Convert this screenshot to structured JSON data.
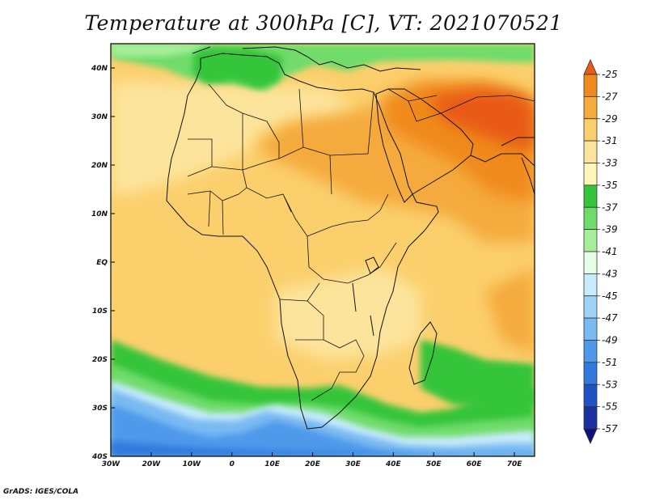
{
  "title": "Temperature at 300hPa [C], VT: 2021070521",
  "credit": "GrADS: IGES/COLA",
  "map": {
    "lon_range": [
      -30,
      75
    ],
    "lat_range": [
      -40,
      45
    ],
    "lon_ticks": [
      {
        "value": -30,
        "label": "30W"
      },
      {
        "value": -20,
        "label": "20W"
      },
      {
        "value": -10,
        "label": "10W"
      },
      {
        "value": 0,
        "label": "0"
      },
      {
        "value": 10,
        "label": "10E"
      },
      {
        "value": 20,
        "label": "20E"
      },
      {
        "value": 30,
        "label": "30E"
      },
      {
        "value": 40,
        "label": "40E"
      },
      {
        "value": 50,
        "label": "50E"
      },
      {
        "value": 60,
        "label": "60E"
      },
      {
        "value": 70,
        "label": "70E"
      }
    ],
    "lat_ticks": [
      {
        "value": 40,
        "label": "40N"
      },
      {
        "value": 30,
        "label": "30N"
      },
      {
        "value": 20,
        "label": "20N"
      },
      {
        "value": 10,
        "label": "10N"
      },
      {
        "value": 0,
        "label": "EQ"
      },
      {
        "value": -10,
        "label": "10S"
      },
      {
        "value": -20,
        "label": "20S"
      },
      {
        "value": -30,
        "label": "30S"
      },
      {
        "value": -40,
        "label": "40S"
      }
    ]
  },
  "colorbar": {
    "levels": [
      "-25",
      "-27",
      "-29",
      "-31",
      "-33",
      "-35",
      "-37",
      "-39",
      "-41",
      "-43",
      "-45",
      "-47",
      "-49",
      "-51",
      "-53",
      "-55",
      "-57"
    ],
    "colors": [
      "#e85a18",
      "#f08a1e",
      "#f5aa3c",
      "#fbcf6c",
      "#fde49c",
      "#fff6b8",
      "#35c53a",
      "#6fdc6a",
      "#a6ef9a",
      "#e6ffe6",
      "#c8ecfc",
      "#9fd3f7",
      "#79baf2",
      "#4f99eb",
      "#3179dc",
      "#2052c6",
      "#1a2fa0",
      "#10117a"
    ]
  }
}
